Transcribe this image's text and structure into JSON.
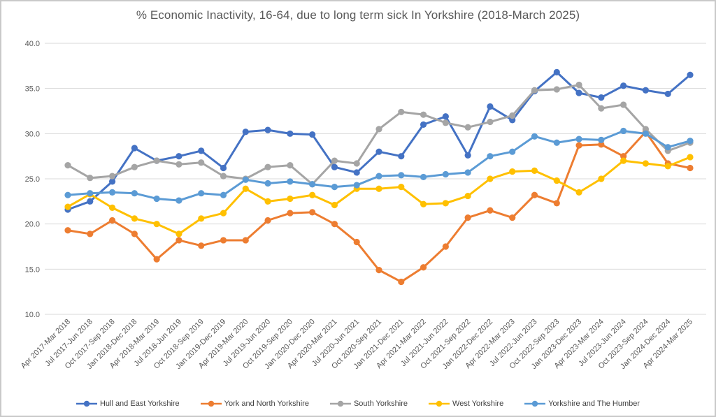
{
  "window": {
    "background_color": "#ffffff",
    "frame_border_color": "#c9c9c9"
  },
  "chart_data": {
    "type": "line",
    "title": "% Economic Inactivity, 16-64, due to long term sick In Yorkshire (2018-March 2025)",
    "xlabel": "",
    "ylabel": "",
    "ylim": [
      10.0,
      40.0
    ],
    "ytick_step": 5.0,
    "ytick_labels": [
      "40.0",
      "35.0",
      "30.0",
      "25.0",
      "20.0",
      "15.0",
      "10.0"
    ],
    "grid": "horizontal",
    "gridline_color": "#d9d9d9",
    "axis_text_color": "#595959",
    "legend_position": "bottom",
    "categories": [
      "Apr 2017-Mar 2018",
      "Jul 2017-Jun 2018",
      "Oct 2017-Sep 2018",
      "Jan 2018-Dec 2018",
      "Apr 2018-Mar 2019",
      "Jul 2018-Jun 2019",
      "Oct 2018-Sep 2019",
      "Jan 2019-Dec 2019",
      "Apr 2019-Mar 2020",
      "Jul 2019-Jun 2020",
      "Oct 2019-Sep 2020",
      "Jan 2020-Dec 2020",
      "Apr 2020-Mar 2021",
      "Jul 2020-Jun 2021",
      "Oct 2020-Sep 2021",
      "Jan 2021-Dec 2021",
      "Apr 2021-Mar 2022",
      "Jul 2021-Jun 2022",
      "Oct 2021-Sep 2022",
      "Jan 2022-Dec 2022",
      "Apr 2022-Mar 2023",
      "Jul 2022-Jun 2023",
      "Oct 2022-Sep 2023",
      "Jan 2023-Dec 2023",
      "Apr 2023-Mar 2024",
      "Jul 2023-Jun 2024",
      "Oct 2023-Sep 2024",
      "Jan 2024-Dec 2024",
      "Apr 2024-Mar 2025"
    ],
    "series": [
      {
        "name": "Hull and East Yorkshire",
        "color": "#4472C4",
        "values": [
          21.6,
          22.5,
          24.7,
          28.4,
          27.0,
          27.5,
          28.1,
          26.2,
          30.2,
          30.4,
          30.0,
          29.9,
          26.3,
          25.7,
          28.0,
          27.5,
          31.0,
          31.9,
          27.6,
          33.0,
          31.5,
          34.7,
          36.8,
          34.5,
          34.0,
          35.3,
          34.8,
          34.4,
          36.5
        ]
      },
      {
        "name": "York and North Yorkshire",
        "color": "#ED7D31",
        "values": [
          19.3,
          18.9,
          20.4,
          18.9,
          16.1,
          18.2,
          17.6,
          18.2,
          18.2,
          20.4,
          21.2,
          21.3,
          20.0,
          18.0,
          14.9,
          13.6,
          15.2,
          17.5,
          20.7,
          21.5,
          20.7,
          23.2,
          22.3,
          28.7,
          28.8,
          27.5,
          30.2,
          26.7,
          26.2
        ]
      },
      {
        "name": "South Yorkshire",
        "color": "#A5A5A5",
        "values": [
          26.5,
          25.1,
          25.3,
          26.3,
          27.0,
          26.6,
          26.8,
          25.3,
          25.0,
          26.3,
          26.5,
          24.4,
          27.0,
          26.7,
          30.5,
          32.4,
          32.1,
          31.2,
          30.7,
          31.3,
          32.0,
          34.8,
          34.9,
          35.4,
          32.8,
          33.2,
          30.5,
          28.1,
          29.0
        ]
      },
      {
        "name": "West Yorkshire",
        "color": "#FFC000",
        "values": [
          21.9,
          23.3,
          21.8,
          20.6,
          20.0,
          18.9,
          20.6,
          21.2,
          23.9,
          22.5,
          22.8,
          23.2,
          22.1,
          23.9,
          23.9,
          24.1,
          22.2,
          22.3,
          23.1,
          25.0,
          25.8,
          25.9,
          24.8,
          23.5,
          25.0,
          27.0,
          26.7,
          26.4,
          27.4
        ]
      },
      {
        "name": "Yorkshire and The Humber",
        "color": "#5B9BD5",
        "values": [
          23.2,
          23.4,
          23.5,
          23.4,
          22.8,
          22.6,
          23.4,
          23.2,
          24.9,
          24.5,
          24.7,
          24.4,
          24.1,
          24.3,
          25.3,
          25.4,
          25.2,
          25.5,
          25.7,
          27.5,
          28.0,
          29.7,
          29.0,
          29.4,
          29.3,
          30.3,
          30.0,
          28.5,
          29.2
        ]
      }
    ]
  }
}
